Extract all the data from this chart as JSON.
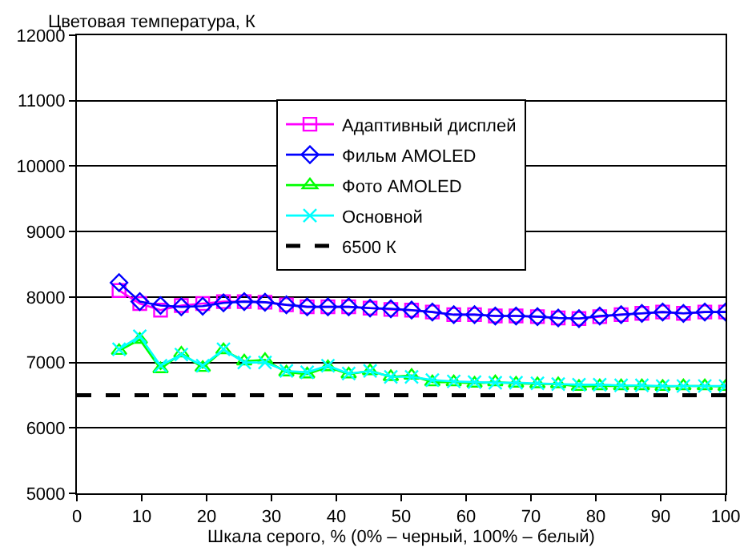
{
  "chart_data": {
    "type": "line",
    "ylabel": "Цветовая температура, К",
    "xlabel": "Шкала серого, % (0% – черный, 100% – белый)",
    "x": [
      6.5,
      9.7,
      12.9,
      16.1,
      19.4,
      22.6,
      25.8,
      29.0,
      32.3,
      35.5,
      38.7,
      41.9,
      45.2,
      48.4,
      51.6,
      54.8,
      58.1,
      61.3,
      64.5,
      67.7,
      71.0,
      74.2,
      77.4,
      80.6,
      83.9,
      87.1,
      90.3,
      93.5,
      96.8,
      100
    ],
    "series": [
      {
        "name": "Адаптивный дисплей",
        "color": "#ff00ff",
        "marker": "square",
        "values": [
          8100,
          7900,
          7800,
          7870,
          7900,
          7930,
          7930,
          7920,
          7880,
          7850,
          7850,
          7850,
          7830,
          7810,
          7800,
          7770,
          7730,
          7730,
          7710,
          7710,
          7700,
          7680,
          7670,
          7700,
          7730,
          7750,
          7770,
          7750,
          7770,
          7770
        ]
      },
      {
        "name": "Фильм AMOLED",
        "color": "#0000ff",
        "marker": "diamond",
        "values": [
          8220,
          7930,
          7870,
          7850,
          7860,
          7910,
          7930,
          7920,
          7880,
          7850,
          7850,
          7850,
          7830,
          7820,
          7800,
          7770,
          7730,
          7730,
          7710,
          7710,
          7700,
          7680,
          7670,
          7710,
          7730,
          7750,
          7770,
          7750,
          7770,
          7770
        ]
      },
      {
        "name": "Фото AMOLED",
        "color": "#00ff00",
        "marker": "triangle",
        "values": [
          7180,
          7350,
          6900,
          7140,
          6920,
          7190,
          7020,
          7040,
          6850,
          6820,
          6930,
          6820,
          6870,
          6780,
          6800,
          6700,
          6700,
          6680,
          6700,
          6680,
          6670,
          6670,
          6630,
          6640,
          6640,
          6640,
          6630,
          6640,
          6640,
          6630
        ]
      },
      {
        "name": "Основной",
        "color": "#00ffff",
        "marker": "cross",
        "values": [
          7200,
          7400,
          6950,
          7120,
          6950,
          7200,
          7000,
          7000,
          6870,
          6850,
          6950,
          6830,
          6870,
          6780,
          6780,
          6730,
          6710,
          6700,
          6690,
          6690,
          6680,
          6670,
          6660,
          6660,
          6650,
          6650,
          6640,
          6640,
          6640,
          6640
        ]
      }
    ],
    "ref_lines": [
      {
        "axis": "y",
        "value": 6500,
        "label": "6500 К",
        "color": "#000000",
        "line_style": "dashed"
      }
    ],
    "xlim": [
      0,
      100
    ],
    "xticks": [
      0,
      10,
      20,
      30,
      40,
      50,
      60,
      70,
      80,
      90,
      100
    ],
    "ylim": [
      5000,
      12000
    ],
    "yticks": [
      5000,
      6000,
      7000,
      8000,
      9000,
      10000,
      11000,
      12000
    ],
    "grid": "y",
    "legend": "top"
  }
}
